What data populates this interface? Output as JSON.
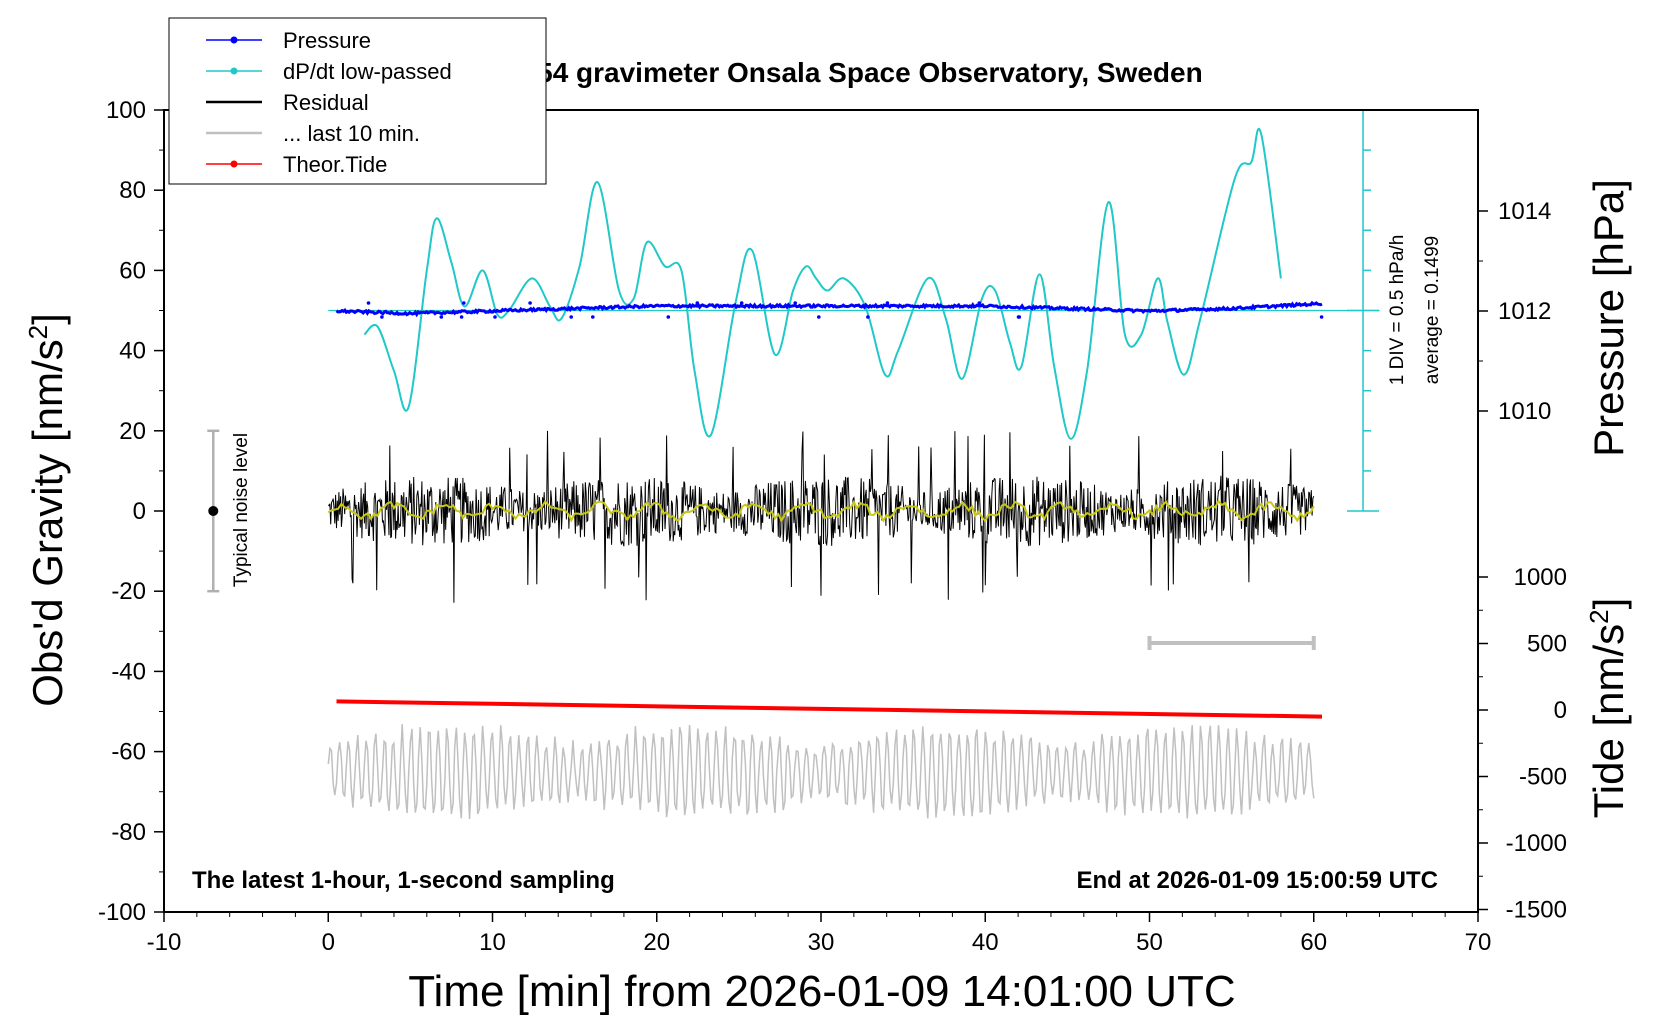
{
  "chart_data": {
    "type": "line",
    "title": "SCG_054 gravimeter Onsala Space Observatory, Sweden",
    "xlabel": "Time [min] from 2026-01-09 14:01:00 UTC",
    "ylabel": "Obs'd Gravity [nm/s",
    "ylabel_sup": "2",
    "ylabel_end": "]",
    "pressure_label": "Pressure [hPa]",
    "tide_label": "Tide [nm/s",
    "tide_label_sup": "2",
    "tide_label_end": "]",
    "xlim": [
      -10,
      70
    ],
    "ylim": [
      -100,
      100
    ],
    "x_ticks": [
      "-10",
      "0",
      "10",
      "20",
      "30",
      "40",
      "50",
      "60",
      "70"
    ],
    "y_ticks": [
      "100",
      "80",
      "60",
      "40",
      "20",
      "0",
      "-20",
      "-40",
      "-60",
      "-80",
      "-100"
    ],
    "pressure_ticks": [
      "1014",
      "1012",
      "1010"
    ],
    "pressure_tick_values": [
      1014,
      1012,
      1010
    ],
    "tide_ticks": [
      "1000",
      "500",
      "0",
      "-500",
      "-1000",
      "-1500"
    ],
    "tide_tick_values": [
      1000,
      500,
      0,
      -500,
      -1000,
      -1500
    ],
    "note_left": "The latest 1-hour, 1-second sampling",
    "note_right": "End at 2026-01-09 15:00:59 UTC",
    "noise_label": "Typical noise level",
    "noise_level": {
      "x": -7,
      "center": 0,
      "low": -20,
      "high": 20
    },
    "dpdt_scale_label": "1 DIV = 0.5 hPa/h",
    "dpdt_average_label": "average = 0.1499",
    "ten_min_bar": [
      50,
      60
    ],
    "legend": [
      {
        "label": "Pressure",
        "color": "#0000ff",
        "marker": true
      },
      {
        "label": "dP/dt low-passed",
        "color": "#20c8c8",
        "marker": true
      },
      {
        "label": "Residual",
        "color": "#000000",
        "marker": false
      },
      {
        "label": "... last 10 min.",
        "color": "#c0c0c0",
        "marker": false
      },
      {
        "label": "Theor.Tide",
        "color": "#ff0000",
        "marker": true
      }
    ],
    "series": [
      {
        "name": "Pressure",
        "axis": "pressure_hPa",
        "color": "#0000ff",
        "x": [
          0.5,
          5,
          10,
          15,
          20,
          25,
          30,
          35,
          40,
          45,
          50,
          55,
          60.5
        ],
        "values": [
          1012.0,
          1011.95,
          1012.0,
          1012.05,
          1012.1,
          1012.1,
          1012.1,
          1012.1,
          1012.1,
          1012.05,
          1012.0,
          1012.05,
          1012.15
        ]
      },
      {
        "name": "dP/dt low-passed",
        "axis": "gravity",
        "color": "#20c8c8",
        "x": [
          2.2,
          3,
          4,
          4.9,
          6,
          6.6,
          7.5,
          8.3,
          9.4,
          10.3,
          11,
          12.4,
          13.5,
          14.2,
          15.3,
          16.4,
          17.7,
          18.6,
          19.4,
          20.5,
          21.5,
          22.3,
          23.3,
          24.8,
          25.8,
          27.2,
          28.3,
          29.1,
          29.7,
          30.4,
          31.4,
          32.7,
          33.9,
          34.7,
          36.5,
          37.6,
          38.6,
          39.8,
          40.6,
          41.5,
          42.2,
          43.3,
          44.2,
          45.2,
          46.2,
          47.5,
          48.5,
          49.5,
          50.5,
          51.1,
          52.1,
          53.1,
          55.2,
          56.2,
          56.8,
          58.0
        ],
        "values": [
          44,
          46,
          35,
          26,
          60,
          73,
          62,
          51,
          60,
          49,
          50,
          58,
          51,
          48,
          61,
          82,
          55,
          53,
          67,
          61,
          60,
          35,
          19,
          52,
          65,
          39,
          55,
          61,
          58,
          55,
          58,
          51,
          34,
          40,
          58,
          48,
          33,
          53,
          55,
          42,
          36,
          59,
          36,
          18,
          35,
          77,
          44,
          44,
          58,
          47,
          34,
          48,
          83,
          87,
          94,
          58
        ]
      },
      {
        "name": "Residual",
        "axis": "gravity",
        "color": "#000000",
        "x": [
          0,
          60
        ],
        "values": [
          0,
          0
        ],
        "amplitude": [
          -23,
          20
        ]
      },
      {
        "name": "Theor.Tide",
        "axis": "tide",
        "color": "#ff0000",
        "x": [
          0.5,
          60.5
        ],
        "values": [
          65,
          -50
        ]
      },
      {
        "name": "... last 10 min.",
        "axis": "gravity",
        "color": "#c0c0c0",
        "x": [
          0,
          60
        ],
        "values": [
          -65,
          -65
        ],
        "amplitude": [
          -79,
          -46
        ]
      }
    ]
  }
}
